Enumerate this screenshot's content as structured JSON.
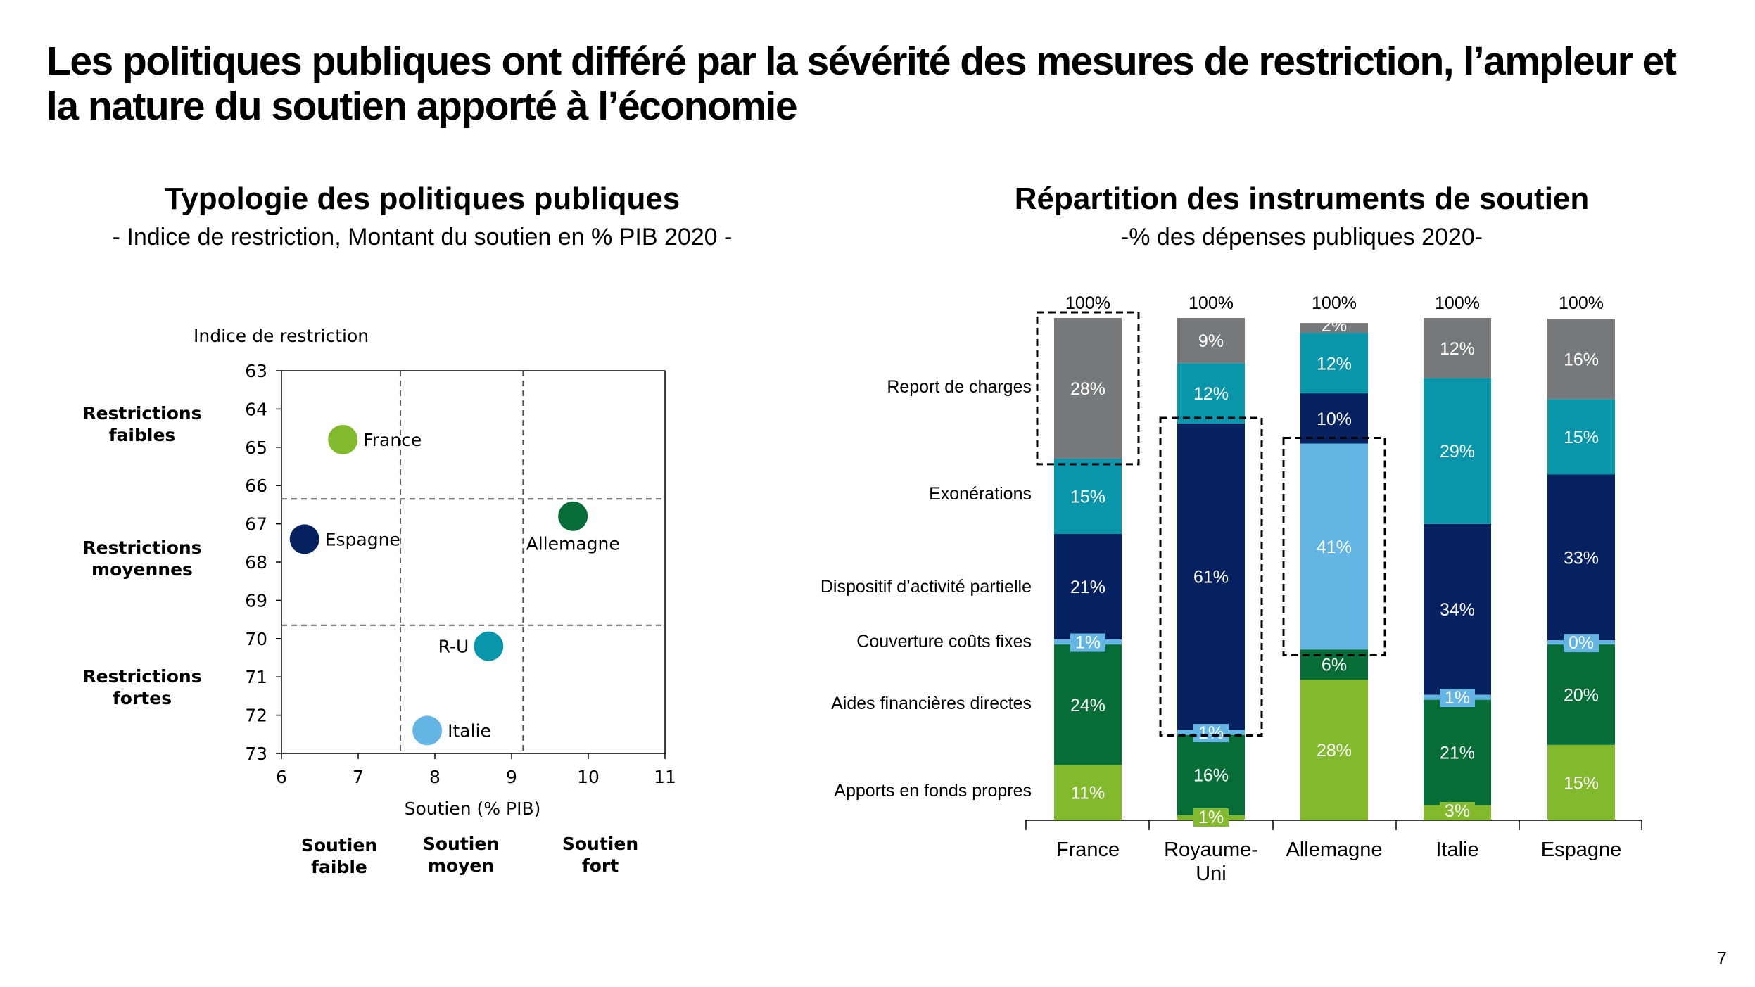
{
  "title": "Les politiques publiques ont différé par la sévérité des mesures de restriction, l’ampleur et la nature du soutien apporté à l’économie",
  "page_number": "7",
  "colors": {
    "report": "#76797b",
    "exon": "#0a96aa",
    "activite": "#06215f",
    "couts": "#64b4e4",
    "aides": "#066d36",
    "fonds": "#83b92d"
  },
  "chart_data": [
    {
      "type": "scatter",
      "title": "Typologie des politiques publiques",
      "subtitle": "- Indice de restriction, Montant du soutien en % PIB 2020 -",
      "xlabel": "Soutien (% PIB)",
      "ylabel": "Indice de restriction",
      "xlim": [
        6,
        11
      ],
      "ylim": [
        63,
        73
      ],
      "y_inverted": true,
      "xticks": [
        "6",
        "7",
        "8",
        "9",
        "10",
        "11"
      ],
      "yticks": [
        "63",
        "64",
        "65",
        "66",
        "67",
        "68",
        "69",
        "70",
        "71",
        "72",
        "73"
      ],
      "points": [
        {
          "label": "France",
          "x": 6.8,
          "y": 64.8,
          "color": "#83b92d"
        },
        {
          "label": "Espagne",
          "x": 6.3,
          "y": 67.4,
          "color": "#06215f"
        },
        {
          "label": "Allemagne",
          "x": 9.8,
          "y": 66.8,
          "color": "#066d36"
        },
        {
          "label": "R-U",
          "x": 8.7,
          "y": 70.2,
          "color": "#0a96aa"
        },
        {
          "label": "Italie",
          "x": 7.9,
          "y": 72.4,
          "color": "#64b4e4"
        }
      ],
      "x_dividers": [
        7.55,
        9.15
      ],
      "y_dividers": [
        66.35,
        69.65
      ],
      "row_labels": [
        {
          "line1": "Restrictions",
          "line2": "faibles"
        },
        {
          "line1": "Restrictions",
          "line2": "moyennes"
        },
        {
          "line1": "Restrictions",
          "line2": "fortes"
        }
      ],
      "col_labels": [
        {
          "line1": "Soutien",
          "line2": "faible"
        },
        {
          "line1": "Soutien",
          "line2": "moyen"
        },
        {
          "line1": "Soutien",
          "line2": "fort"
        }
      ]
    },
    {
      "type": "bar",
      "stacked": true,
      "title": "Répartition des instruments de soutien",
      "subtitle": "-% des dépenses publiques 2020-",
      "categories": [
        [
          "France"
        ],
        [
          "Royaume-",
          "Uni"
        ],
        [
          "Allemagne"
        ],
        [
          "Italie"
        ],
        [
          "Espagne"
        ]
      ],
      "totals": [
        "100%",
        "100%",
        "100%",
        "100%",
        "100%"
      ],
      "series": [
        {
          "name": "Apports en fonds propres",
          "color": "#83b92d",
          "values": [
            11,
            1,
            28,
            3,
            15
          ],
          "labels": [
            "11%",
            "1%",
            "28%",
            "3%",
            "15%"
          ]
        },
        {
          "name": "Aides financières directes",
          "color": "#066d36",
          "values": [
            24,
            16,
            6,
            21,
            20
          ],
          "labels": [
            "24%",
            "16%",
            "6%",
            "21%",
            "20%"
          ]
        },
        {
          "name": "Couverture coûts fixes",
          "color": "#64b4e4",
          "values": [
            1,
            1,
            41,
            1,
            0
          ],
          "labels": [
            "1%",
            "1%",
            "41%",
            "1%",
            "0%"
          ]
        },
        {
          "name": "Dispositif d’activité partielle",
          "color": "#06215f",
          "values": [
            21,
            61,
            10,
            34,
            33
          ],
          "labels": [
            "21%",
            "61%",
            "10%",
            "34%",
            "33%"
          ]
        },
        {
          "name": "Exonérations",
          "color": "#0a96aa",
          "values": [
            15,
            12,
            12,
            29,
            15
          ],
          "labels": [
            "15%",
            "12%",
            "12%",
            "29%",
            "15%"
          ]
        },
        {
          "name": "Report de charges",
          "color": "#76797b",
          "values": [
            28,
            9,
            2,
            12,
            16
          ],
          "labels": [
            "28%",
            "9%",
            "2%",
            "12%",
            "16%"
          ]
        }
      ],
      "highlights": [
        {
          "category": 0,
          "series": 5
        },
        {
          "category": 1,
          "series": 3
        },
        {
          "category": 2,
          "series": 2
        }
      ]
    }
  ]
}
